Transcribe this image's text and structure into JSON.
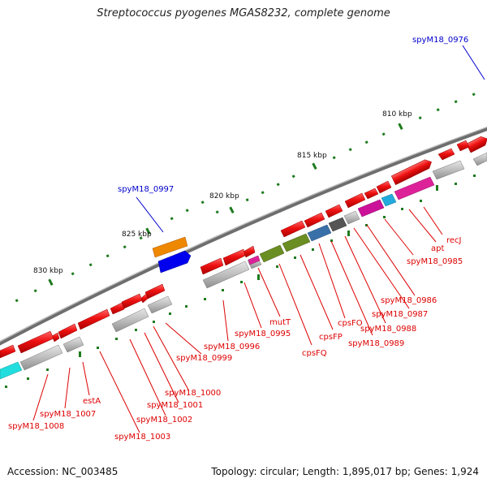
{
  "title": "Streptococcus pyogenes MGAS8232, complete genome",
  "footer": {
    "accession": "Accession: NC_003485",
    "summary": "Topology: circular; Length: 1,895,017 bp; Genes: 1,924"
  },
  "colors": {
    "label_red": "#dd0000",
    "label_blue": "#0000cc",
    "backbone": "#777777",
    "forward_gene": "#ee1111",
    "reverse_gene": "#bbbbbb",
    "tick": "#1e7a1e"
  },
  "scale_labels": [
    "810 kbp",
    "815 kbp",
    "820 kbp",
    "825 kbp",
    "830 kbp"
  ],
  "red_labels": [
    "recJ",
    "apt",
    "spyM18_0985",
    "spyM18_0986",
    "spyM18_0987",
    "spyM18_0988",
    "spyM18_0989",
    "cpsFO",
    "cpsFP",
    "cpsFQ",
    "mutT",
    "spyM18_0995",
    "spyM18_0996",
    "spyM18_0999",
    "spyM18_1000",
    "spyM18_1001",
    "spyM18_1002",
    "spyM18_1003",
    "estA",
    "spyM18_1007",
    "spyM18_1008"
  ],
  "blue_labels": [
    "spyM18_0976",
    "spyM18_0997"
  ]
}
